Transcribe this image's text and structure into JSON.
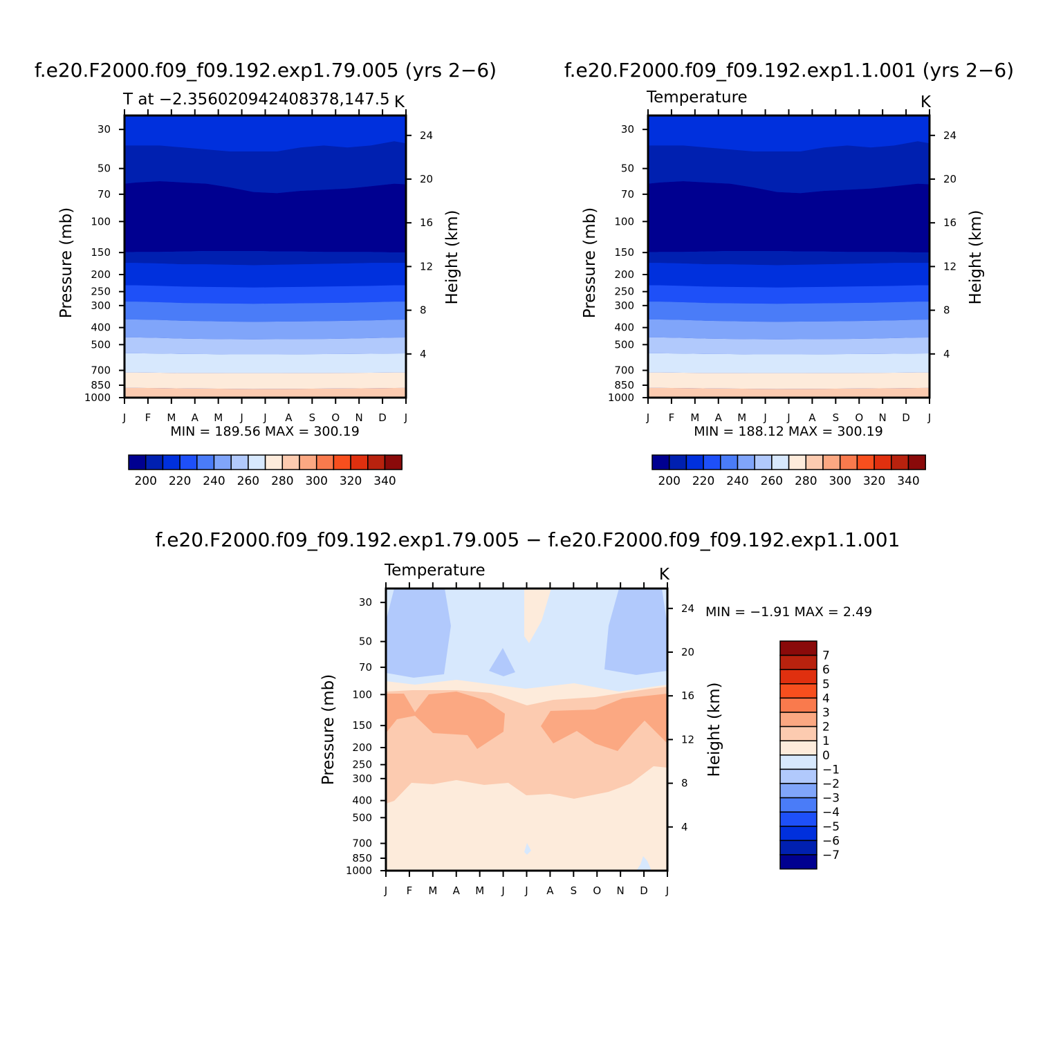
{
  "chart_data": [
    {
      "type": "heatmap",
      "title": "f.e20.F2000.f09_f09.192.exp1.79.005 (yrs 2−6)",
      "subtitle_left": "T at −2.356020942408378,147.5",
      "subtitle_right": "K",
      "xlabel": "",
      "ylabel": "Pressure  (mb)",
      "ylabel_right": "Height  (km)",
      "x": [
        "J",
        "F",
        "M",
        "A",
        "M",
        "J",
        "J",
        "A",
        "S",
        "O",
        "N",
        "D",
        "J"
      ],
      "y_ticks": [
        30,
        50,
        70,
        100,
        150,
        200,
        250,
        300,
        400,
        500,
        700,
        850,
        1000
      ],
      "y_scale": "log",
      "ylim": [
        1000,
        25
      ],
      "y_right_ticks": [
        4,
        8,
        12,
        16,
        20,
        24
      ],
      "stats": "MIN =  189.56  MAX =  300.19",
      "contour_bands": [
        {
          "range": [
            195,
            200
          ],
          "boundary": [
            150,
            149,
            149,
            148,
            147,
            147,
            147,
            148,
            148,
            149,
            149,
            149,
            150,
            150
          ]
        },
        {
          "range": [
            200,
            210
          ],
          "boundary": [
            62,
            60,
            59,
            60,
            61,
            64,
            68,
            69,
            67,
            66,
            65,
            63,
            61,
            62
          ]
        },
        {
          "range": [
            210,
            220
          ],
          "boundary": [
            36,
            37,
            37,
            38,
            39,
            40,
            40,
            40,
            38,
            37,
            38,
            37,
            35,
            37
          ]
        }
      ],
      "levels": [
        {
          "value": 190,
          "color": "#000090"
        },
        {
          "value": 200,
          "color": "#0020B0"
        },
        {
          "value": 210,
          "color": "#0030DD"
        },
        {
          "value": 220,
          "color": "#1E50F8"
        },
        {
          "value": 230,
          "color": "#4A7CF8"
        },
        {
          "value": 240,
          "color": "#80A5FA"
        },
        {
          "value": 250,
          "color": "#B1C9FC"
        },
        {
          "value": 260,
          "color": "#D7E8FD"
        },
        {
          "value": 270,
          "color": "#FDEBDB"
        },
        {
          "value": 280,
          "color": "#FCCBB0"
        },
        {
          "value": 290,
          "color": "#FBA882"
        }
      ],
      "colorbar": {
        "colors": [
          "#000090",
          "#0020B0",
          "#0030DD",
          "#1E50F8",
          "#4A7CF8",
          "#80A5FA",
          "#B1C9FC",
          "#D7E8FD",
          "#FDEBDB",
          "#FCCBB0",
          "#FBA882",
          "#F97A4D",
          "#F74F1E",
          "#E0300F",
          "#B8220E",
          "#8A0A0A"
        ],
        "labels": [
          "200",
          "220",
          "240",
          "260",
          "280",
          "300",
          "320",
          "340"
        ]
      }
    },
    {
      "type": "heatmap",
      "title": "f.e20.F2000.f09_f09.192.exp1.1.001 (yrs 2−6)",
      "subtitle_left": "Temperature",
      "subtitle_right": "K",
      "xlabel": "",
      "ylabel": "Pressure  (mb)",
      "ylabel_right": "Height  (km)",
      "x": [
        "J",
        "F",
        "M",
        "A",
        "M",
        "J",
        "J",
        "A",
        "S",
        "O",
        "N",
        "D",
        "J"
      ],
      "y_ticks": [
        30,
        50,
        70,
        100,
        150,
        200,
        250,
        300,
        400,
        500,
        700,
        850,
        1000
      ],
      "y_scale": "log",
      "ylim": [
        1000,
        25
      ],
      "y_right_ticks": [
        4,
        8,
        12,
        16,
        20,
        24
      ],
      "stats": "MIN =  188.12  MAX =  300.19",
      "colorbar": {
        "colors": [
          "#000090",
          "#0020B0",
          "#0030DD",
          "#1E50F8",
          "#4A7CF8",
          "#80A5FA",
          "#B1C9FC",
          "#D7E8FD",
          "#FDEBDB",
          "#FCCBB0",
          "#FBA882",
          "#F97A4D",
          "#F74F1E",
          "#E0300F",
          "#B8220E",
          "#8A0A0A"
        ],
        "labels": [
          "200",
          "220",
          "240",
          "260",
          "280",
          "300",
          "320",
          "340"
        ]
      }
    },
    {
      "type": "heatmap",
      "title": "f.e20.F2000.f09_f09.192.exp1.79.005 − f.e20.F2000.f09_f09.192.exp1.1.001",
      "subtitle_left": "Temperature",
      "subtitle_right": "K",
      "xlabel": "",
      "ylabel": "Pressure  (mb)",
      "ylabel_right": "Height  (km)",
      "x": [
        "J",
        "F",
        "M",
        "A",
        "M",
        "J",
        "J",
        "A",
        "S",
        "O",
        "N",
        "D",
        "J"
      ],
      "y_ticks": [
        30,
        50,
        70,
        100,
        150,
        200,
        250,
        300,
        400,
        500,
        700,
        850,
        1000
      ],
      "y_scale": "log",
      "ylim": [
        1000,
        25
      ],
      "y_right_ticks": [
        4,
        8,
        12,
        16,
        20,
        24
      ],
      "stats": "MIN =    −1.91  MAX =      2.49",
      "colorbar": {
        "orientation": "vertical",
        "colors": [
          "#000090",
          "#0020B0",
          "#0030DD",
          "#1E50F8",
          "#4A7CF8",
          "#80A5FA",
          "#B1C9FC",
          "#D7E8FD",
          "#FDEBDB",
          "#FCCBB0",
          "#FBA882",
          "#F97A4D",
          "#F74F1E",
          "#E0300F",
          "#B8220E",
          "#8A0A0A"
        ],
        "labels": [
          "7",
          "6",
          "5",
          "4",
          "3",
          "2",
          "1",
          "0",
          "−1",
          "−2",
          "−3",
          "−4",
          "−5",
          "−6",
          "−7"
        ]
      }
    }
  ]
}
